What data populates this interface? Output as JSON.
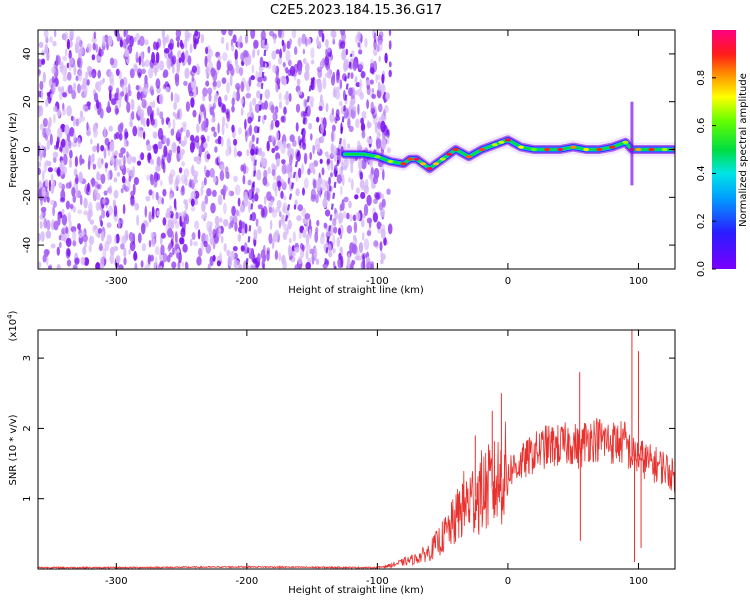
{
  "title": "C2E5.2023.184.15.36.G17",
  "colors": {
    "snr_line": "#e8302d",
    "spectrogram_low": "#8a2be2",
    "spectrogram_high": "#ff1a1a",
    "axes": "#000000"
  },
  "chart_data": [
    {
      "type": "heatmap",
      "name": "spectrogram",
      "xlabel": "Height of straight line (km)",
      "ylabel": "Frequency (Hz)",
      "xlim": [
        -360,
        128
      ],
      "ylim": [
        -50,
        50
      ],
      "xticks": [
        -300,
        -200,
        -100,
        0,
        100
      ],
      "yticks": [
        -40,
        -20,
        0,
        20,
        40
      ],
      "colorbar": {
        "label": "Normalized spectral amplitude",
        "range": [
          0.0,
          1.0
        ],
        "ticks": [
          0.0,
          0.2,
          0.4,
          0.6,
          0.8
        ],
        "colormap": "rainbow (violet → blue → cyan → green → yellow → red → magenta)"
      },
      "features": [
        {
          "kind": "noise",
          "x_range": [
            -360,
            -90
          ],
          "y_range": [
            -50,
            50
          ],
          "amplitude": 0.05
        },
        {
          "kind": "ridge",
          "x": [
            -125,
            -110,
            -100,
            -90,
            -80,
            -75,
            -70,
            -65,
            -60,
            -55,
            -50,
            -45,
            -40,
            -30,
            -20,
            -10,
            -5,
            0,
            10,
            20,
            30,
            40,
            50,
            60,
            70,
            80,
            90,
            95,
            100,
            110,
            120,
            128
          ],
          "y": [
            -2,
            -2,
            -3,
            -5,
            -6,
            -4,
            -4,
            -6,
            -8,
            -6,
            -4,
            -2,
            0,
            -3,
            0,
            2,
            3,
            4,
            1,
            0,
            0,
            0,
            1,
            0,
            0,
            1,
            3,
            0,
            0,
            0,
            0,
            0
          ],
          "amplitude_peak": 0.95
        },
        {
          "kind": "spike",
          "x": 95,
          "y_range": [
            -15,
            20
          ]
        }
      ]
    },
    {
      "type": "line",
      "name": "snr",
      "xlabel": "Height of straight line (km)",
      "ylabel": "SNR (10 * v/v)",
      "y_multiplier": "(x10",
      "y_multiplier_exp": "4",
      "y_multiplier_close": ")",
      "xlim": [
        -360,
        128
      ],
      "ylim": [
        0,
        3.4
      ],
      "xticks": [
        -300,
        -200,
        -100,
        0,
        100
      ],
      "yticks": [
        1,
        2,
        3
      ],
      "x": [
        -360,
        -300,
        -200,
        -100,
        -90,
        -80,
        -70,
        -60,
        -50,
        -40,
        -35,
        -30,
        -20,
        -10,
        0,
        10,
        20,
        30,
        40,
        50,
        55,
        60,
        70,
        80,
        90,
        95,
        100,
        110,
        120,
        128
      ],
      "y": [
        0.02,
        0.02,
        0.03,
        0.02,
        0.05,
        0.1,
        0.15,
        0.25,
        0.45,
        0.7,
        0.9,
        0.95,
        1.1,
        1.2,
        1.4,
        1.5,
        1.65,
        1.75,
        1.75,
        1.8,
        1.7,
        1.85,
        1.85,
        1.8,
        1.8,
        1.6,
        1.6,
        1.5,
        1.45,
        1.3
      ],
      "spikes": [
        {
          "x": -25,
          "y": 1.9
        },
        {
          "x": -12,
          "y": 2.25
        },
        {
          "x": -5,
          "y": 2.5
        },
        {
          "x": 55,
          "y": 2.8
        },
        {
          "x": 55.5,
          "y": 0.4
        },
        {
          "x": 95,
          "y": 3.4
        },
        {
          "x": 97,
          "y": 0.1
        },
        {
          "x": 100,
          "y": 3.1
        },
        {
          "x": 102,
          "y": 0.3
        }
      ]
    }
  ]
}
